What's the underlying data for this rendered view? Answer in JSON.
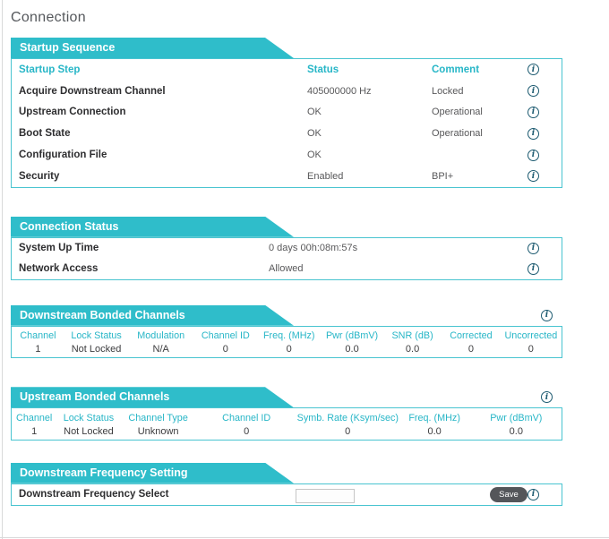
{
  "page_title": "Connection",
  "colors": {
    "banner_teal": "#2fbdca",
    "border_teal": "#49c4d0",
    "header_teal": "#27b6c7",
    "info_icon": "#1c5a70",
    "save_button": "#54565a"
  },
  "icons": {
    "info_glyph": "i"
  },
  "startup": {
    "banner": "Startup Sequence",
    "headers": {
      "step": "Startup Step",
      "status": "Status",
      "comment": "Comment"
    },
    "rows": [
      {
        "step": "Acquire Downstream Channel",
        "status": "405000000 Hz",
        "comment": "Locked"
      },
      {
        "step": "Upstream Connection",
        "status": "OK",
        "comment": "Operational"
      },
      {
        "step": "Boot State",
        "status": "OK",
        "comment": "Operational"
      },
      {
        "step": "Configuration File",
        "status": "OK",
        "comment": ""
      },
      {
        "step": "Security",
        "status": "Enabled",
        "comment": "BPI+"
      }
    ]
  },
  "connection_status": {
    "banner": "Connection Status",
    "rows": [
      {
        "label": "System Up Time",
        "value": "0 days 00h:08m:57s"
      },
      {
        "label": "Network Access",
        "value": "Allowed"
      }
    ]
  },
  "downstream": {
    "banner": "Downstream Bonded Channels",
    "headers": [
      "Channel",
      "Lock Status",
      "Modulation",
      "Channel ID",
      "Freq. (MHz)",
      "Pwr (dBmV)",
      "SNR (dB)",
      "Corrected",
      "Uncorrected"
    ],
    "rows": [
      [
        "1",
        "Not Locked",
        "N/A",
        "0",
        "0",
        "0.0",
        "0.0",
        "0",
        "0"
      ]
    ]
  },
  "upstream": {
    "banner": "Upstream Bonded Channels",
    "headers": [
      "Channel",
      "Lock Status",
      "Channel Type",
      "Channel ID",
      "Symb. Rate (Ksym/sec)",
      "Freq. (MHz)",
      "Pwr (dBmV)"
    ],
    "rows": [
      [
        "1",
        "Not Locked",
        "Unknown",
        "0",
        "0",
        "0.0",
        "0.0"
      ]
    ]
  },
  "freq_setting": {
    "banner": "Downstream Frequency Setting",
    "label": "Downstream Frequency Select",
    "input_value": "",
    "save_label": "Save"
  }
}
